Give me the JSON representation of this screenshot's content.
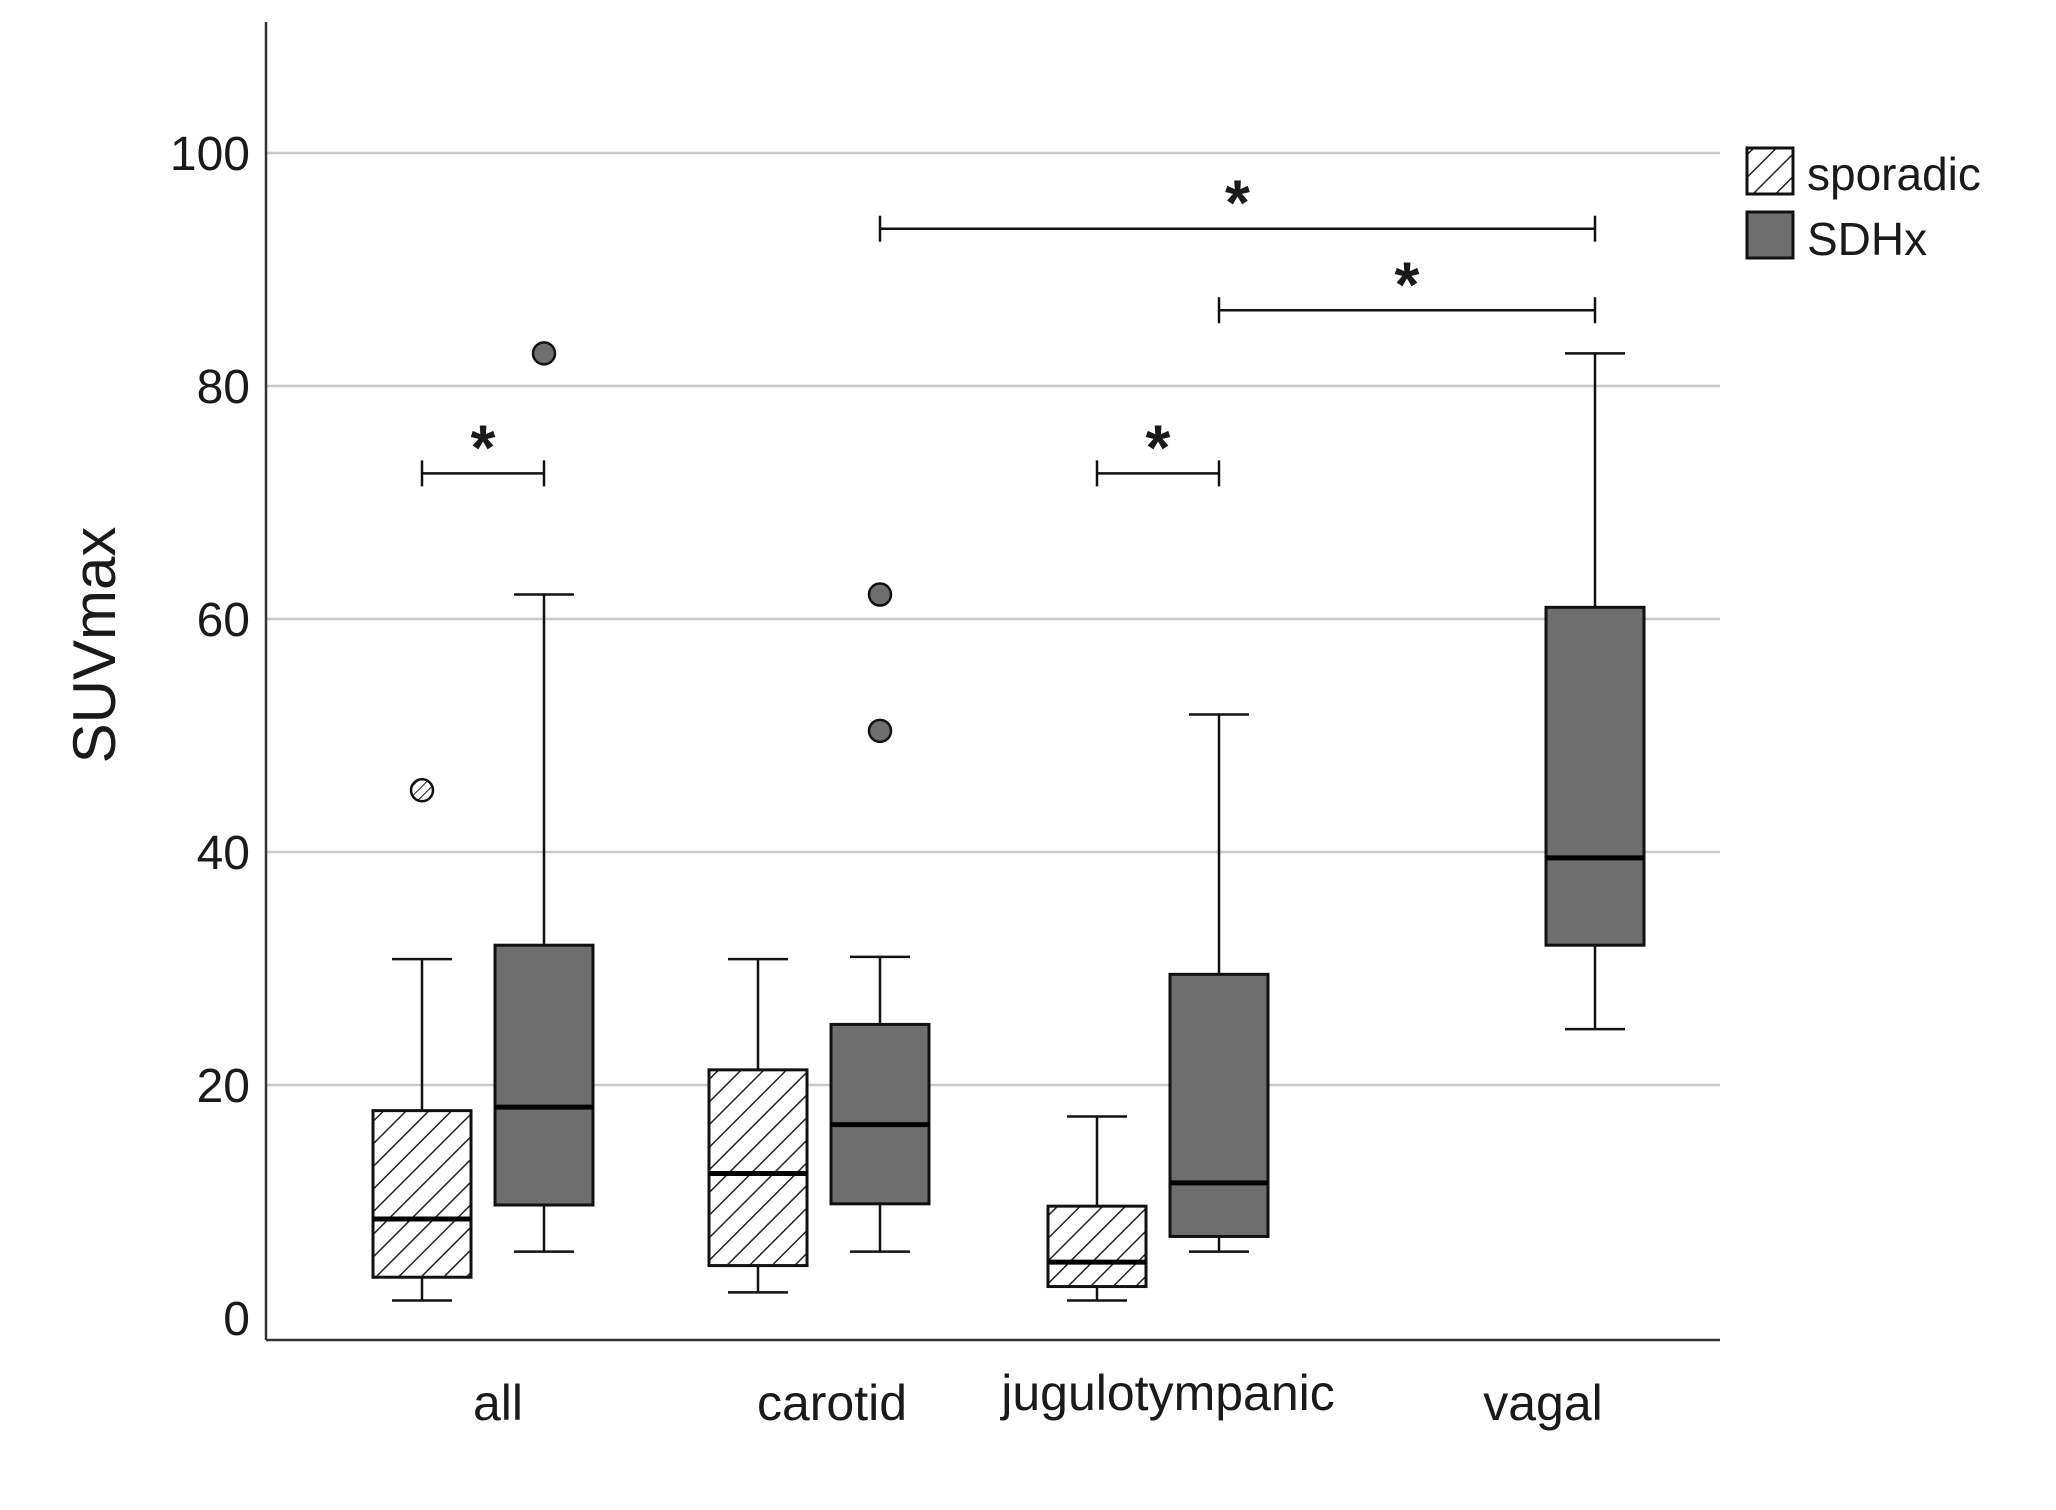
{
  "chart_data": {
    "type": "boxplot",
    "title": "",
    "xlabel": "",
    "ylabel": "SUVmax",
    "ylim": [
      -2,
      111
    ],
    "yticks": [
      0,
      20,
      40,
      60,
      80,
      100
    ],
    "grid": true,
    "legend_position": "top-right",
    "categories": [
      "all",
      "carotid",
      "jugulotympanic",
      "vagal"
    ],
    "series": [
      {
        "name": "sporadic",
        "pattern": "hatched",
        "fill": "#ffffff",
        "boxes": [
          {
            "category": "all",
            "min": 1.5,
            "q1": 3.5,
            "median": 8.5,
            "q3": 17.8,
            "max": 30.8,
            "outliers": [
              45.3
            ]
          },
          {
            "category": "carotid",
            "min": 2.2,
            "q1": 4.5,
            "median": 12.4,
            "q3": 21.3,
            "max": 30.8,
            "outliers": []
          },
          {
            "category": "jugulotympanic",
            "min": 1.5,
            "q1": 2.7,
            "median": 4.8,
            "q3": 9.6,
            "max": 17.3,
            "outliers": []
          }
        ]
      },
      {
        "name": "SDHx",
        "pattern": "solid",
        "fill": "#6e6e6e",
        "boxes": [
          {
            "category": "all",
            "min": 5.7,
            "q1": 9.7,
            "median": 18.1,
            "q3": 32.0,
            "max": 62.1,
            "outliers": [
              82.8
            ]
          },
          {
            "category": "carotid",
            "min": 5.7,
            "q1": 9.8,
            "median": 16.6,
            "q3": 25.2,
            "max": 31.0,
            "outliers": [
              62.1,
              50.4
            ]
          },
          {
            "category": "jugulotympanic",
            "min": 5.7,
            "q1": 7.0,
            "median": 11.6,
            "q3": 29.5,
            "max": 51.8,
            "outliers": []
          },
          {
            "category": "vagal",
            "min": 24.8,
            "q1": 32.0,
            "median": 39.5,
            "q3": 61.0,
            "max": 82.8,
            "outliers": []
          }
        ]
      }
    ],
    "significance": [
      {
        "from": "all sporadic",
        "to": "all SDHx",
        "y": 72.5,
        "label": "*"
      },
      {
        "from": "jugulotympanic sporadic",
        "to": "jugulotympanic SDHx",
        "y": 72.5,
        "label": "*"
      },
      {
        "from": "jugulotympanic SDHx",
        "to": "vagal SDHx",
        "y": 86.5,
        "label": "*"
      },
      {
        "from": "carotid SDHx",
        "to": "vagal SDHx",
        "y": 93.5,
        "label": "*"
      }
    ]
  }
}
